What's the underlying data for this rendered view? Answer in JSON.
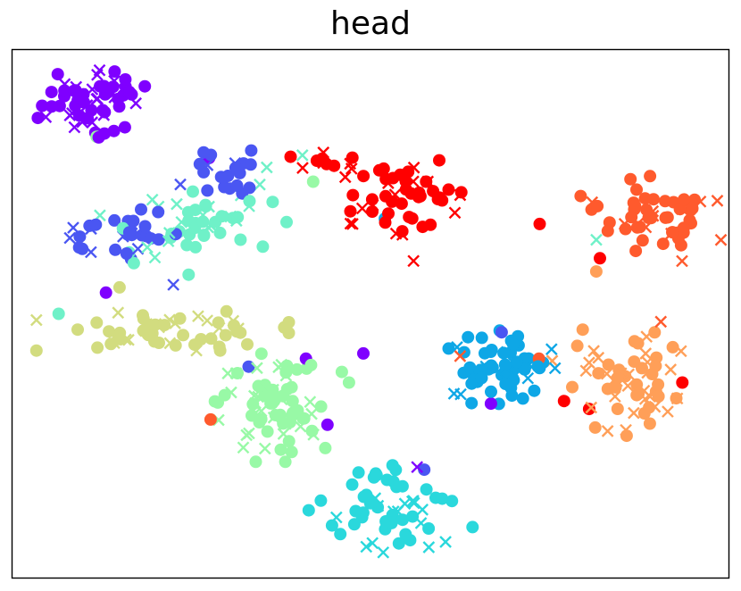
{
  "chart_data": {
    "type": "scatter",
    "title": "head",
    "xlabel": "",
    "ylabel": "",
    "xlim": [
      0,
      100
    ],
    "ylim": [
      0,
      100
    ],
    "grid": false,
    "ticks": false,
    "legend": "none",
    "marker_types": [
      "o",
      "x"
    ],
    "clusters": [
      {
        "color": "#7f00ff",
        "cx": 11,
        "cy": 90,
        "sx": 4.0,
        "sy": 3.0,
        "rot": 20,
        "n": 60
      },
      {
        "color": "#4a56f2",
        "cx": 15,
        "cy": 65,
        "sx": 4.0,
        "sy": 2.2,
        "rot": 10,
        "n": 30
      },
      {
        "color": "#4a56f2",
        "cx": 30,
        "cy": 77,
        "sx": 3.0,
        "sy": 3.0,
        "rot": 0,
        "n": 20
      },
      {
        "color": "#6ff1c8",
        "cx": 27,
        "cy": 67,
        "sx": 6.0,
        "sy": 3.5,
        "rot": 25,
        "n": 50
      },
      {
        "color": "#ff0000",
        "cx": 56,
        "cy": 72,
        "sx": 4.0,
        "sy": 3.2,
        "rot": 0,
        "n": 45
      },
      {
        "color": "#ff0000",
        "cx": 45,
        "cy": 78,
        "sx": 3.5,
        "sy": 1.0,
        "rot": -10,
        "n": 14
      },
      {
        "color": "#ff5a2d",
        "cx": 89,
        "cy": 69,
        "sx": 5.0,
        "sy": 3.5,
        "rot": -20,
        "n": 55
      },
      {
        "color": "#d2dc7f",
        "cx": 21,
        "cy": 47,
        "sx": 8.0,
        "sy": 1.8,
        "rot": 0,
        "n": 55
      },
      {
        "color": "#98f9a6",
        "cx": 36,
        "cy": 33,
        "sx": 3.5,
        "sy": 5.0,
        "rot": 0,
        "n": 75
      },
      {
        "color": "#0ea7e6",
        "cx": 68,
        "cy": 40,
        "sx": 4.5,
        "sy": 3.2,
        "rot": 0,
        "n": 65
      },
      {
        "color": "#ff9f58",
        "cx": 86,
        "cy": 38,
        "sx": 4.0,
        "sy": 5.0,
        "rot": 30,
        "n": 60
      },
      {
        "color": "#2ad8dc",
        "cx": 52,
        "cy": 13,
        "sx": 4.0,
        "sy": 4.5,
        "rot": 35,
        "n": 55
      }
    ],
    "points": [
      {
        "x": 73.6,
        "y": 67.0,
        "color": "#ff0000",
        "marker": "o"
      },
      {
        "x": 11.8,
        "y": 83.5,
        "color": "#98f9a6",
        "marker": "o"
      },
      {
        "x": 13.1,
        "y": 54.0,
        "color": "#7f00ff",
        "marker": "o"
      },
      {
        "x": 27.7,
        "y": 30.0,
        "color": "#ff5a2d",
        "marker": "o"
      },
      {
        "x": 33.0,
        "y": 40.0,
        "color": "#4a56f2",
        "marker": "o"
      },
      {
        "x": 49.0,
        "y": 42.5,
        "color": "#7f00ff",
        "marker": "o"
      },
      {
        "x": 47.0,
        "y": 37.0,
        "color": "#98f9a6",
        "marker": "o"
      },
      {
        "x": 47.5,
        "y": 67.0,
        "color": "#ff0000",
        "marker": "x"
      },
      {
        "x": 56.0,
        "y": 60.0,
        "color": "#ff0000",
        "marker": "x"
      },
      {
        "x": 52.0,
        "y": 68.0,
        "color": "#0ea7e6",
        "marker": "o"
      },
      {
        "x": 68.3,
        "y": 46.5,
        "color": "#4a56f2",
        "marker": "o"
      },
      {
        "x": 66.8,
        "y": 33.0,
        "color": "#7f00ff",
        "marker": "o"
      },
      {
        "x": 80.5,
        "y": 32.0,
        "color": "#ff0000",
        "marker": "o"
      },
      {
        "x": 77.0,
        "y": 33.5,
        "color": "#ff0000",
        "marker": "o"
      },
      {
        "x": 93.5,
        "y": 37.0,
        "color": "#ff0000",
        "marker": "o"
      },
      {
        "x": 90.5,
        "y": 48.5,
        "color": "#ff5a2d",
        "marker": "x"
      },
      {
        "x": 81.5,
        "y": 64.0,
        "color": "#6ff1c8",
        "marker": "x"
      },
      {
        "x": 82.0,
        "y": 60.5,
        "color": "#ff0000",
        "marker": "o"
      },
      {
        "x": 81.5,
        "y": 58.0,
        "color": "#ff9f58",
        "marker": "o"
      },
      {
        "x": 57.5,
        "y": 20.5,
        "color": "#4a56f2",
        "marker": "o"
      },
      {
        "x": 56.5,
        "y": 21.0,
        "color": "#7f00ff",
        "marker": "x"
      },
      {
        "x": 44.0,
        "y": 29.0,
        "color": "#7f00ff",
        "marker": "o"
      },
      {
        "x": 46.0,
        "y": 39.0,
        "color": "#98f9a6",
        "marker": "o"
      },
      {
        "x": 41.0,
        "y": 41.5,
        "color": "#7f00ff",
        "marker": "o"
      },
      {
        "x": 6.5,
        "y": 50.0,
        "color": "#6ff1c8",
        "marker": "o"
      },
      {
        "x": 15.0,
        "y": 55.0,
        "color": "#d2dc7f",
        "marker": "o"
      },
      {
        "x": 22.5,
        "y": 55.5,
        "color": "#4a56f2",
        "marker": "x"
      },
      {
        "x": 27.5,
        "y": 79.5,
        "color": "#7f00ff",
        "marker": "o"
      },
      {
        "x": 40.5,
        "y": 80.0,
        "color": "#6ff1c8",
        "marker": "x"
      },
      {
        "x": 42.0,
        "y": 75.0,
        "color": "#98f9a6",
        "marker": "o"
      },
      {
        "x": 62.5,
        "y": 42.0,
        "color": "#ff5a2d",
        "marker": "x"
      },
      {
        "x": 73.5,
        "y": 41.5,
        "color": "#ff5a2d",
        "marker": "o"
      }
    ]
  }
}
